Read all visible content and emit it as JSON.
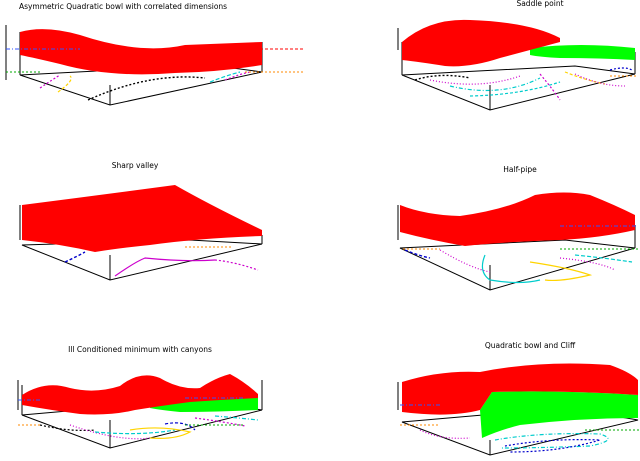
{
  "chart_data": [
    {
      "type": "surface",
      "title": "Asymmetric Quadratic bowl with correlated dimensions",
      "surface_color": "#ff0000",
      "contours": true,
      "green_surface": false
    },
    {
      "type": "surface",
      "title": "Saddle point",
      "surface_color": "#ff0000",
      "contours": true,
      "green_surface": true
    },
    {
      "type": "surface",
      "title": "Sharp valley",
      "surface_color": "#ff0000",
      "contours": true,
      "green_surface": false
    },
    {
      "type": "surface",
      "title": "Half-pipe",
      "surface_color": "#ff0000",
      "contours": true,
      "green_surface": false
    },
    {
      "type": "surface",
      "title": "Ill Conditioned minimum with canyons",
      "surface_color": "#ff0000",
      "contours": true,
      "green_surface": true
    },
    {
      "type": "surface",
      "title": "Quadratic bowl and Cliff",
      "surface_color": "#ff0000",
      "contours": true,
      "green_surface": true
    }
  ],
  "colors": {
    "surface": "#ff0000",
    "secondary_surface": "#00ff00",
    "contour_blue": "#0000cc",
    "contour_cyan": "#00cccc",
    "contour_magenta": "#cc00cc",
    "contour_yellow": "#ffd400",
    "contour_black": "#000000",
    "guide_red": "#ff0000",
    "guide_orange": "#ff8800",
    "guide_blue": "#3355ff",
    "guide_green": "#00aa00"
  }
}
